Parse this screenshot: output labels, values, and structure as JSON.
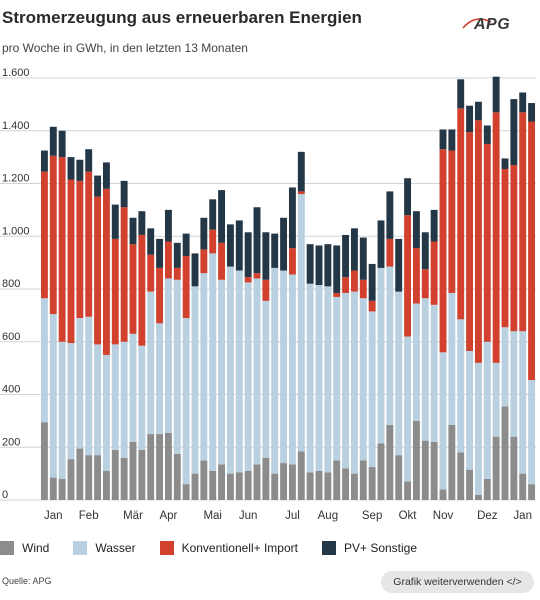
{
  "header": {
    "title": "Stromerzeugung aus erneuerbaren Energien",
    "subtitle": "pro Woche in GWh, in den letzten 13 Monaten",
    "logo_text": "APG"
  },
  "footer": {
    "source": "Quelle: APG",
    "reuse_button": "Grafik weiterverwenden </>"
  },
  "colors": {
    "wind": "#8c8c8c",
    "wasser": "#b8d0e0",
    "konventionell": "#d2412e",
    "pv": "#243746",
    "grid": "#cfd4d8",
    "axis_text": "#333333"
  },
  "chart_data": {
    "type": "bar",
    "stacked": true,
    "ylim": [
      0,
      1600
    ],
    "ytick_labels": [
      "0",
      "200",
      "400",
      "600",
      "800",
      "1.000",
      "1.200",
      "1.400",
      "1.600"
    ],
    "yticks": [
      0,
      200,
      400,
      600,
      800,
      1000,
      1200,
      1400,
      1600
    ],
    "grid": true,
    "legend_position": "bottom",
    "month_labels": [
      {
        "label": "Jan",
        "week": 1
      },
      {
        "label": "Feb",
        "week": 5
      },
      {
        "label": "Mär",
        "week": 10
      },
      {
        "label": "Apr",
        "week": 14
      },
      {
        "label": "Mai",
        "week": 19
      },
      {
        "label": "Jun",
        "week": 23
      },
      {
        "label": "Jul",
        "week": 28
      },
      {
        "label": "Aug",
        "week": 32
      },
      {
        "label": "Sep",
        "week": 37
      },
      {
        "label": "Okt",
        "week": 41
      },
      {
        "label": "Nov",
        "week": 45
      },
      {
        "label": "Dez",
        "week": 50
      },
      {
        "label": "Jan",
        "week": 54
      }
    ],
    "weeks": 56,
    "series": [
      {
        "name": "Wind",
        "values": [
          295,
          85,
          80,
          155,
          195,
          170,
          170,
          110,
          190,
          160,
          220,
          190,
          250,
          250,
          255,
          175,
          60,
          100,
          150,
          110,
          135,
          100,
          105,
          110,
          135,
          160,
          100,
          140,
          135,
          185,
          105,
          110,
          105,
          150,
          120,
          100,
          150,
          125,
          215,
          285,
          170,
          70,
          300,
          225,
          220,
          40,
          285,
          180,
          115,
          20,
          80,
          240,
          355,
          240,
          100,
          60
        ]
      },
      {
        "name": "Wasser",
        "values": [
          470,
          620,
          520,
          440,
          495,
          525,
          420,
          440,
          400,
          440,
          410,
          395,
          540,
          420,
          585,
          660,
          630,
          710,
          710,
          825,
          700,
          785,
          765,
          715,
          705,
          595,
          780,
          730,
          720,
          975,
          715,
          705,
          705,
          620,
          665,
          690,
          615,
          590,
          665,
          600,
          620,
          550,
          445,
          540,
          520,
          520,
          500,
          505,
          450,
          500,
          520,
          280,
          300,
          400,
          540,
          395
        ]
      },
      {
        "name": "Konventionell+ Import",
        "values": [
          480,
          600,
          700,
          620,
          520,
          550,
          560,
          630,
          400,
          510,
          340,
          420,
          140,
          210,
          140,
          45,
          235,
          0,
          90,
          90,
          140,
          0,
          0,
          20,
          20,
          80,
          0,
          0,
          100,
          10,
          0,
          0,
          0,
          15,
          60,
          80,
          70,
          40,
          0,
          105,
          0,
          460,
          210,
          110,
          240,
          770,
          540,
          800,
          830,
          920,
          750,
          950,
          600,
          630,
          830,
          980
        ]
      },
      {
        "name": "PV+ Sonstige",
        "values": [
          80,
          110,
          100,
          85,
          80,
          85,
          80,
          100,
          130,
          100,
          100,
          90,
          100,
          110,
          120,
          95,
          85,
          125,
          120,
          115,
          200,
          160,
          190,
          170,
          250,
          180,
          130,
          200,
          230,
          150,
          150,
          150,
          160,
          180,
          160,
          160,
          160,
          140,
          180,
          180,
          200,
          140,
          140,
          140,
          120,
          75,
          80,
          110,
          100,
          70,
          70,
          135,
          40,
          250,
          75,
          70
        ]
      }
    ],
    "legend": [
      "Wind",
      "Wasser",
      "Konventionell+ Import",
      "PV+ Sonstige"
    ]
  }
}
